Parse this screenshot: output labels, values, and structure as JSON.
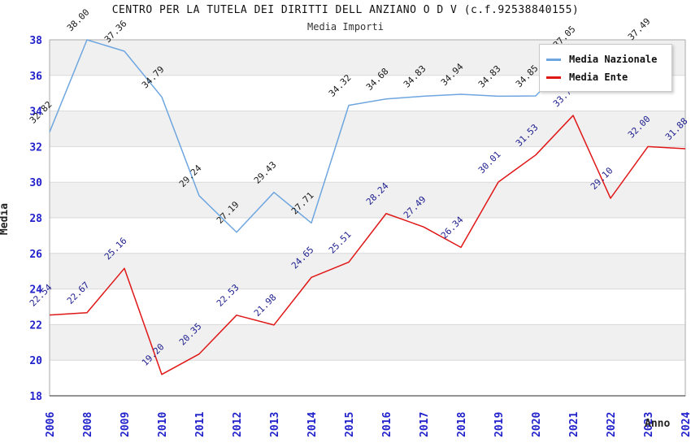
{
  "title": "CENTRO PER LA TUTELA DEI DIRITTI DELL ANZIANO O D V (c.f.92538840155)",
  "subtitle": "Media Importi",
  "x_axis_title": "Anno",
  "y_axis_title": "Media",
  "colors": {
    "nazionale_line": "#6EA6E0",
    "ente_line": "#E01717",
    "axis_tick_text": "#2222CC",
    "nazionale_label_text": "#1a1a1a",
    "ente_label_text": "#202090",
    "band_gray": "#f0f0f0",
    "gridline": "#d9d9d9",
    "plot_border": "#aaaaaa"
  },
  "chart_data": {
    "type": "line",
    "title": "CENTRO PER LA TUTELA DEI DIRITTI DELL ANZIANO O D V (c.f.92538840155)",
    "subtitle": "Media Importi",
    "xlabel": "Anno",
    "ylabel": "Media",
    "ylim": [
      18,
      38
    ],
    "ytick_step": 2,
    "yticks": [
      18,
      20,
      22,
      24,
      26,
      28,
      30,
      32,
      34,
      36,
      38
    ],
    "grid": true,
    "alternating_bands": true,
    "legend_position": "top-right",
    "categories": [
      "2006",
      "2008",
      "2009",
      "2010",
      "2011",
      "2012",
      "2013",
      "2014",
      "2015",
      "2016",
      "2017",
      "2018",
      "2019",
      "2020",
      "2021",
      "2022",
      "2023",
      "2024"
    ],
    "series": [
      {
        "name": "Media Nazionale",
        "color": "#6EA6E0",
        "label_color": "#1a1a1a",
        "values": [
          32.82,
          38.0,
          37.36,
          34.79,
          29.24,
          27.19,
          29.43,
          27.71,
          34.32,
          34.68,
          34.83,
          34.94,
          34.83,
          34.85,
          37.05,
          null,
          37.49,
          null
        ],
        "labels": [
          "32.82",
          "38.00",
          "37.36",
          "34.79",
          "29.24",
          "27.19",
          "29.43",
          "27.71",
          "34.32",
          "34.68",
          "34.83",
          "34.94",
          "34.83",
          "34.85",
          "37.05",
          null,
          "37.49",
          null
        ]
      },
      {
        "name": "Media Ente",
        "color": "#E01717",
        "label_color": "#202090",
        "values": [
          22.54,
          22.67,
          25.16,
          19.2,
          20.35,
          22.53,
          21.98,
          24.65,
          25.51,
          28.24,
          27.49,
          26.34,
          30.01,
          31.53,
          33.75,
          29.1,
          32.0,
          31.88
        ],
        "labels": [
          "22.54",
          "22.67",
          "25.16",
          "19.20",
          "20.35",
          "22.53",
          "21.98",
          "24.65",
          "25.51",
          "28.24",
          "27.49",
          "26.34",
          "30.01",
          "31.53",
          "33.75",
          "29.10",
          "32.00",
          "31.88"
        ]
      }
    ]
  }
}
